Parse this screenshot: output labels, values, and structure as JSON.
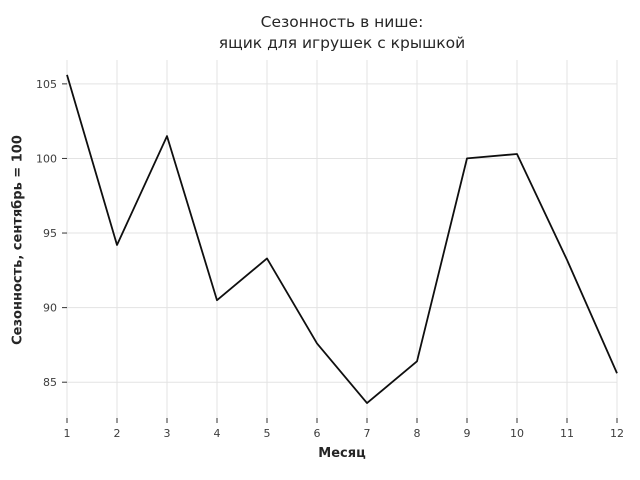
{
  "chart_data": {
    "type": "line",
    "title_line1": "Сезонность в нише:",
    "title_line2": "ящик для игрушек с крышкой",
    "xlabel": "Месяц",
    "ylabel": "Сезонность, сентябрь = 100",
    "x": [
      1,
      2,
      3,
      4,
      5,
      6,
      7,
      8,
      9,
      10,
      11,
      12
    ],
    "values": [
      105.6,
      94.2,
      101.5,
      90.5,
      93.3,
      87.6,
      83.6,
      86.4,
      100.0,
      100.3,
      93.2,
      85.6
    ],
    "x_tick_labels": [
      "1",
      "2",
      "3",
      "4",
      "5",
      "6",
      "7",
      "8",
      "9",
      "10",
      "11",
      "12"
    ],
    "y_ticks": [
      85,
      90,
      95,
      100,
      105
    ],
    "y_tick_labels": [
      "85",
      "90",
      "95",
      "100",
      "105"
    ],
    "xlim": [
      1,
      12
    ],
    "ylim": [
      82.6,
      106.6
    ],
    "grid": true,
    "legend": false,
    "colors": {
      "line": "#0f0f0f",
      "grid": "#e3e3e3",
      "tick_mark": "#333333",
      "tick_text": "#3d3d3d",
      "background": "#ffffff"
    }
  }
}
